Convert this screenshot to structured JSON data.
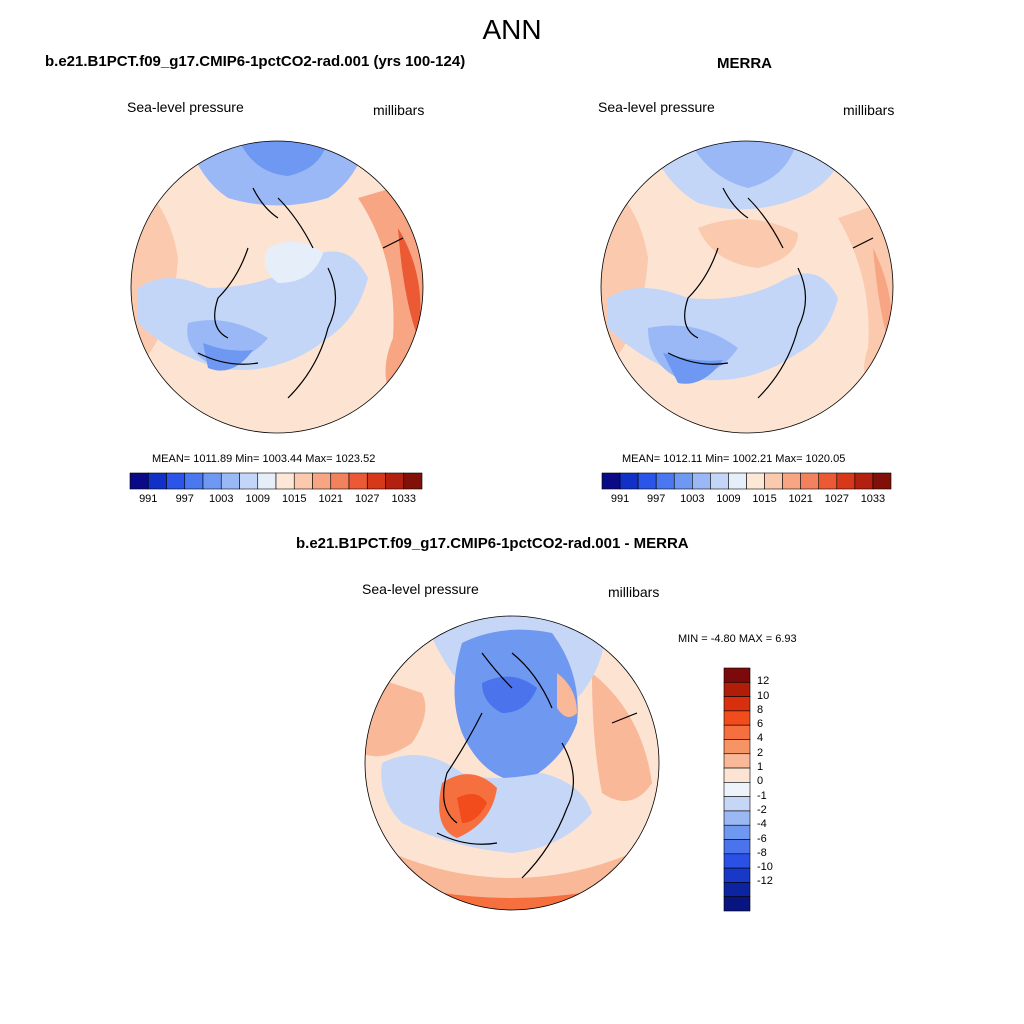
{
  "page_title": "ANN",
  "panels": [
    {
      "title": "b.e21.B1PCT.f09_g17.CMIP6-1pctCO2-rad.001 (yrs 100-124)",
      "variable": "Sea-level pressure",
      "units": "millibars",
      "stats": "MEAN= 1011.89  Min= 1003.44  Max= 1023.52"
    },
    {
      "title": "MERRA",
      "variable": "Sea-level pressure",
      "units": "millibars",
      "stats": "MEAN= 1012.11  Min= 1002.21  Max= 1020.05"
    },
    {
      "title": "b.e21.B1PCT.f09_g17.CMIP6-1pctCO2-rad.001 - MERRA",
      "variable": "Sea-level pressure",
      "units": "millibars",
      "stats": "MIN =  -4.80 MAX =   6.93"
    }
  ],
  "colorbar_abs": {
    "labels": [
      "991",
      "997",
      "1003",
      "1009",
      "1015",
      "1021",
      "1027",
      "1033"
    ],
    "colors": [
      "#0a0a86",
      "#1030c8",
      "#2a55e8",
      "#4a78f0",
      "#6f98f3",
      "#9ab8f6",
      "#c4d6f8",
      "#e6eefa",
      "#fde7d6",
      "#fbc9ad",
      "#f7a583",
      "#f2815d",
      "#ec5a35",
      "#d8381a",
      "#b32010",
      "#801008"
    ]
  },
  "colorbar_diff": {
    "labels": [
      "12",
      "10",
      "8",
      "6",
      "4",
      "2",
      "1",
      "0",
      "-1",
      "-2",
      "-4",
      "-6",
      "-8",
      "-10",
      "-12"
    ],
    "colors": [
      "#7c0a0a",
      "#b01e0a",
      "#d8300f",
      "#f24b1c",
      "#f5703e",
      "#f79466",
      "#f9b898",
      "#fde4d2",
      "#eef3fb",
      "#c6d6f6",
      "#9ab8f3",
      "#6f98f0",
      "#4a73ec",
      "#2a50e6",
      "#1838c8",
      "#0c24a0",
      "#081480"
    ]
  },
  "colors": {
    "blue_deep": "#4a78f0",
    "blue_mid": "#7fa6f2",
    "blue_light": "#c4d6f8",
    "near_zero": "#eef3fb",
    "peach": "#fde4d2",
    "salmon": "#f7a583",
    "red": "#ec5a35"
  }
}
